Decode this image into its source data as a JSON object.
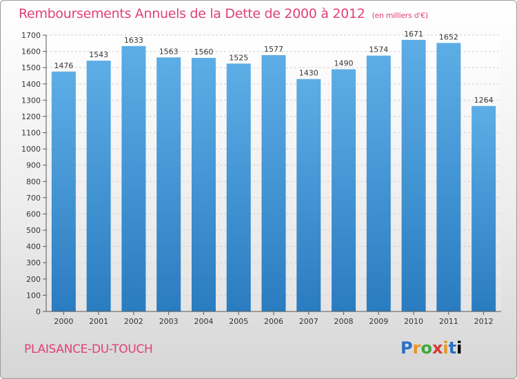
{
  "header": {
    "title": "Remboursements Annuels de la Dette de 2000 à 2012",
    "subtitle": "(en milliers d'€)"
  },
  "footer": {
    "city": "PLAISANCE-DU-TOUCH",
    "logo_letters": [
      "P",
      "r",
      "o",
      "x",
      "i",
      "t",
      "i"
    ]
  },
  "colors": {
    "title": "#e0407a",
    "bar_top": "#5dade6",
    "bar_bottom": "#2a7cc0"
  },
  "chart_data": {
    "type": "bar",
    "title": "Remboursements Annuels de la Dette de 2000 à 2012",
    "subtitle": "(en milliers d'€)",
    "xlabel": "",
    "ylabel": "",
    "categories": [
      "2000",
      "2001",
      "2002",
      "2003",
      "2004",
      "2005",
      "2006",
      "2007",
      "2008",
      "2009",
      "2010",
      "2011",
      "2012"
    ],
    "values": [
      1476,
      1543,
      1633,
      1563,
      1560,
      1525,
      1577,
      1430,
      1490,
      1574,
      1671,
      1652,
      1264
    ],
    "ylim": [
      0,
      1700
    ],
    "yticks": [
      0,
      100,
      200,
      300,
      400,
      500,
      600,
      700,
      800,
      900,
      1000,
      1100,
      1200,
      1300,
      1400,
      1500,
      1600,
      1700
    ],
    "grid": true,
    "legend": "none"
  }
}
